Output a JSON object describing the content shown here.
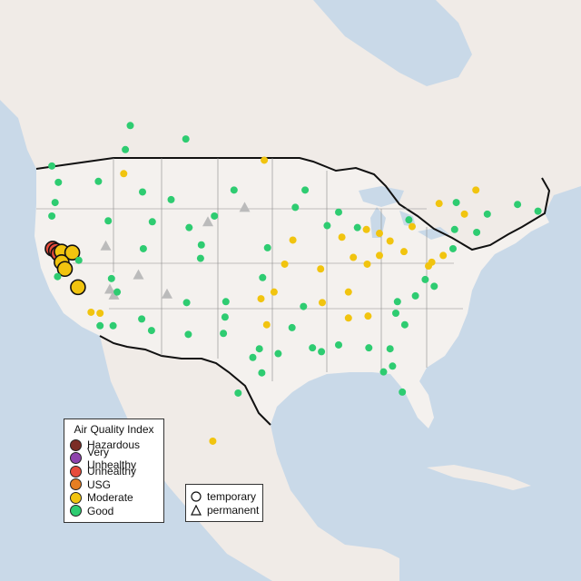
{
  "colors": {
    "ocean": "#c9d9e8",
    "land": "#f0ebe7",
    "us_land": "#f4f1ee",
    "border": "#111111",
    "state_lines": "#8a8a8a",
    "good": "#2ecc71",
    "moderate": "#f1c40f",
    "usg": "#e67e22",
    "unhealthy": "#e74c3c",
    "very_unhealthy": "#8e44ad",
    "hazardous": "#7b2d26",
    "permanent_gray": "#bbbbbb"
  },
  "aqi_legend": {
    "title": "Air Quality Index",
    "items": [
      {
        "label": "Hazardous",
        "color": "#7b2d26"
      },
      {
        "label": "Very Unhealthy",
        "color": "#8e44ad"
      },
      {
        "label": "Unhealthy",
        "color": "#e74c3c"
      },
      {
        "label": "USG",
        "color": "#e67e22"
      },
      {
        "label": "Moderate",
        "color": "#f1c40f"
      },
      {
        "label": "Good",
        "color": "#2ecc71"
      }
    ]
  },
  "type_legend": {
    "items": [
      {
        "label": "temporary",
        "shape": "circle-icon"
      },
      {
        "label": "permanent",
        "shape": "triangle-icon"
      }
    ]
  },
  "monitors": [
    {
      "lon": -123.0,
      "lat": 40.7,
      "category": "Unhealthy"
    },
    {
      "lon": -122.6,
      "lat": 40.5,
      "category": "Unhealthy"
    },
    {
      "lon": -122.3,
      "lat": 40.2,
      "category": "Unhealthy"
    },
    {
      "lon": -121.9,
      "lat": 40.4,
      "category": "Moderate"
    },
    {
      "lon": -120.6,
      "lat": 40.3,
      "category": "Moderate"
    },
    {
      "lon": -121.9,
      "lat": 39.3,
      "category": "Moderate"
    },
    {
      "lon": -114.3,
      "lat": 48.5,
      "category": "Moderate"
    },
    {
      "lon": -119.9,
      "lat": 36.7,
      "category": "Moderate"
    },
    {
      "lon": -118.3,
      "lat": 34.1,
      "category": "Moderate"
    },
    {
      "lon": -117.2,
      "lat": 34.0,
      "category": "Moderate"
    },
    {
      "lon": -112.1,
      "lat": 33.4,
      "category": "Good"
    },
    {
      "lon": -110.9,
      "lat": 32.2,
      "category": "Good"
    },
    {
      "lon": -104.9,
      "lat": 39.7,
      "category": "Good"
    },
    {
      "lon": -111.9,
      "lat": 40.7,
      "category": "Good"
    },
    {
      "lon": -116.2,
      "lat": 43.6,
      "category": "Good"
    },
    {
      "lon": -122.7,
      "lat": 45.5,
      "category": "Good"
    },
    {
      "lon": -122.3,
      "lat": 47.6,
      "category": "Good"
    },
    {
      "lon": -117.4,
      "lat": 47.7,
      "category": "Good"
    },
    {
      "lon": -106.6,
      "lat": 35.1,
      "category": "Good"
    },
    {
      "lon": -97.7,
      "lat": 30.3,
      "category": "Good"
    },
    {
      "lon": -95.4,
      "lat": 29.8,
      "category": "Good"
    },
    {
      "lon": -96.8,
      "lat": 32.8,
      "category": "Moderate"
    },
    {
      "lon": -97.5,
      "lat": 35.5,
      "category": "Moderate"
    },
    {
      "lon": -94.6,
      "lat": 39.1,
      "category": "Moderate"
    },
    {
      "lon": -90.2,
      "lat": 38.6,
      "category": "Moderate"
    },
    {
      "lon": -87.6,
      "lat": 41.9,
      "category": "Moderate"
    },
    {
      "lon": -86.2,
      "lat": 39.8,
      "category": "Moderate"
    },
    {
      "lon": -84.5,
      "lat": 39.1,
      "category": "Moderate"
    },
    {
      "lon": -83.0,
      "lat": 40.0,
      "category": "Moderate"
    },
    {
      "lon": -83.0,
      "lat": 42.3,
      "category": "Moderate"
    },
    {
      "lon": -81.7,
      "lat": 41.5,
      "category": "Moderate"
    },
    {
      "lon": -80.0,
      "lat": 40.4,
      "category": "Moderate"
    },
    {
      "lon": -77.0,
      "lat": 38.9,
      "category": "Moderate"
    },
    {
      "lon": -76.6,
      "lat": 39.3,
      "category": "Moderate"
    },
    {
      "lon": -75.2,
      "lat": 40.0,
      "category": "Moderate"
    },
    {
      "lon": -74.0,
      "lat": 40.7,
      "category": "Good"
    },
    {
      "lon": -71.1,
      "lat": 42.4,
      "category": "Good"
    },
    {
      "lon": -73.8,
      "lat": 42.7,
      "category": "Good"
    },
    {
      "lon": -79.0,
      "lat": 43.0,
      "category": "Moderate"
    },
    {
      "lon": -80.8,
      "lat": 35.2,
      "category": "Good"
    },
    {
      "lon": -78.6,
      "lat": 35.8,
      "category": "Good"
    },
    {
      "lon": -84.4,
      "lat": 33.7,
      "category": "Moderate"
    },
    {
      "lon": -86.8,
      "lat": 33.5,
      "category": "Moderate"
    },
    {
      "lon": -86.8,
      "lat": 36.2,
      "category": "Moderate"
    },
    {
      "lon": -90.0,
      "lat": 35.1,
      "category": "Moderate"
    },
    {
      "lon": -81.4,
      "lat": 28.5,
      "category": "Good"
    },
    {
      "lon": -80.2,
      "lat": 25.8,
      "category": "Good"
    },
    {
      "lon": -82.5,
      "lat": 27.9,
      "category": "Good"
    },
    {
      "lon": -90.1,
      "lat": 30.0,
      "category": "Good"
    },
    {
      "lon": -93.3,
      "lat": 45.0,
      "category": "Good"
    },
    {
      "lon": -96.7,
      "lat": 40.8,
      "category": "Good"
    },
    {
      "lon": -101.8,
      "lat": 35.2,
      "category": "Good"
    },
    {
      "lon": -103.2,
      "lat": 44.1,
      "category": "Good"
    },
    {
      "lon": -108.5,
      "lat": 45.8,
      "category": "Good"
    },
    {
      "lon": -100.8,
      "lat": 46.8,
      "category": "Good"
    },
    {
      "lon": -106.3,
      "lat": 42.9,
      "category": "Good"
    },
    {
      "lon": -89.4,
      "lat": 43.1,
      "category": "Good"
    },
    {
      "lon": -85.7,
      "lat": 42.9,
      "category": "Good"
    },
    {
      "lon": -92.3,
      "lat": 34.7,
      "category": "Good"
    },
    {
      "lon": -88.0,
      "lat": 30.7,
      "category": "Good"
    },
    {
      "lon": -106.4,
      "lat": 31.8,
      "category": "Good"
    },
    {
      "lon": -115.1,
      "lat": 36.2,
      "category": "Good"
    },
    {
      "lon": -121.5,
      "lat": 38.6,
      "category": "Moderate"
    },
    {
      "lon": -122.4,
      "lat": 37.8,
      "category": "Good"
    },
    {
      "lon": -117.2,
      "lat": 32.7,
      "category": "Good"
    },
    {
      "lon": -123.1,
      "lat": 44.1,
      "category": "Good"
    },
    {
      "lon": -69.8,
      "lat": 44.3,
      "category": "Good"
    },
    {
      "lon": -72.6,
      "lat": 44.3,
      "category": "Moderate"
    },
    {
      "lon": -123.1,
      "lat": 49.3,
      "category": "Good"
    },
    {
      "lon": -114.1,
      "lat": 51.0,
      "category": "Good"
    },
    {
      "lon": -113.5,
      "lat": 53.5,
      "category": "Good"
    },
    {
      "lon": -106.7,
      "lat": 52.1,
      "category": "Good"
    },
    {
      "lon": -97.1,
      "lat": 49.9,
      "category": "Moderate"
    },
    {
      "lon": -79.4,
      "lat": 43.7,
      "category": "Good"
    },
    {
      "lon": -75.7,
      "lat": 45.4,
      "category": "Moderate"
    },
    {
      "lon": -73.6,
      "lat": 45.5,
      "category": "Good"
    },
    {
      "lon": -71.2,
      "lat": 46.8,
      "category": "Moderate"
    },
    {
      "lon": -63.6,
      "lat": 44.6,
      "category": "Good"
    },
    {
      "lon": -66.1,
      "lat": 45.3,
      "category": "Good"
    },
    {
      "lon": -115.6,
      "lat": 32.7,
      "category": "Good"
    },
    {
      "lon": -100.3,
      "lat": 25.7,
      "category": "Good"
    },
    {
      "lon": -103.4,
      "lat": 20.7,
      "category": "Moderate"
    },
    {
      "lon": -115.8,
      "lat": 37.6,
      "category": "Good"
    },
    {
      "lon": -119.8,
      "lat": 39.5,
      "category": "Good"
    },
    {
      "lon": -112.0,
      "lat": 46.6,
      "category": "Good"
    },
    {
      "lon": -110.8,
      "lat": 43.5,
      "category": "Good"
    },
    {
      "lon": -104.8,
      "lat": 41.1,
      "category": "Good"
    },
    {
      "lon": -92.1,
      "lat": 46.8,
      "category": "Good"
    },
    {
      "lon": -88.0,
      "lat": 44.5,
      "category": "Good"
    },
    {
      "lon": -93.6,
      "lat": 41.6,
      "category": "Moderate"
    },
    {
      "lon": -84.6,
      "lat": 42.7,
      "category": "Moderate"
    },
    {
      "lon": -77.4,
      "lat": 37.5,
      "category": "Good"
    },
    {
      "lon": -76.3,
      "lat": 36.8,
      "category": "Good"
    },
    {
      "lon": -79.9,
      "lat": 32.8,
      "category": "Good"
    },
    {
      "lon": -81.0,
      "lat": 34.0,
      "category": "Good"
    },
    {
      "lon": -81.7,
      "lat": 30.3,
      "category": "Good"
    },
    {
      "lon": -84.3,
      "lat": 30.4,
      "category": "Good"
    },
    {
      "lon": -91.2,
      "lat": 30.4,
      "category": "Good"
    },
    {
      "lon": -93.7,
      "lat": 32.5,
      "category": "Good"
    },
    {
      "lon": -98.5,
      "lat": 29.4,
      "category": "Good"
    },
    {
      "lon": -97.4,
      "lat": 27.8,
      "category": "Good"
    },
    {
      "lon": -101.9,
      "lat": 33.6,
      "category": "Good"
    },
    {
      "lon": -102.1,
      "lat": 31.9,
      "category": "Good"
    },
    {
      "lon": -95.9,
      "lat": 36.2,
      "category": "Moderate"
    },
    {
      "lon": -97.3,
      "lat": 37.7,
      "category": "Good"
    }
  ],
  "permanent_sites": [
    {
      "lon": -116.0,
      "lat": 36.5
    },
    {
      "lon": -115.5,
      "lat": 35.9
    },
    {
      "lon": -109.0,
      "lat": 36.0
    },
    {
      "lon": -112.5,
      "lat": 38.0
    },
    {
      "lon": -116.5,
      "lat": 41.0
    },
    {
      "lon": -99.5,
      "lat": 45.0
    },
    {
      "lon": -104.0,
      "lat": 43.5
    }
  ]
}
